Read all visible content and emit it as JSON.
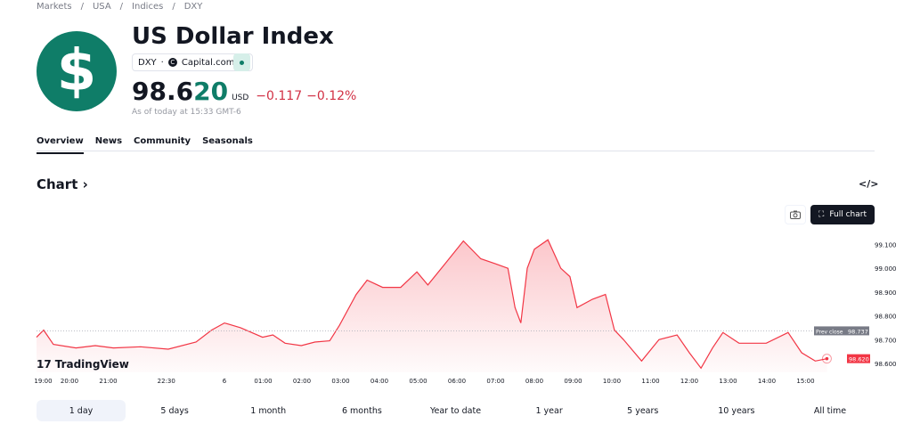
{
  "breadcrumb": [
    "Markets",
    "USA",
    "Indices",
    "DXY"
  ],
  "header": {
    "title": "US Dollar Index",
    "symbol": "DXY",
    "exchange": "Capital.com",
    "logo_glyph": "$",
    "price_main": "98.6",
    "price_tail": "20",
    "currency": "USD",
    "change": "−0.117",
    "change_pct": "−0.12%",
    "as_of": "As of today at 15:33 GMT-6",
    "brand_color": "#0f7d68",
    "down_color": "#d23145"
  },
  "tabs": [
    {
      "label": "Overview",
      "active": true
    },
    {
      "label": "News"
    },
    {
      "label": "Community"
    },
    {
      "label": "Seasonals"
    }
  ],
  "chart_section": {
    "title": "Chart",
    "embed_icon": "</>",
    "full_chart": "Full chart",
    "branding": "TradingView"
  },
  "chart_data": {
    "type": "area",
    "y_ticks": [
      "99.100",
      "99.000",
      "98.900",
      "98.800",
      "98.700",
      "98.600"
    ],
    "ylim": [
      98.56,
      99.16
    ],
    "x_ticks": [
      [
        "19:00",
        "19:00"
      ],
      [
        "20:00",
        "20:00"
      ],
      [
        "21:00",
        "21:00"
      ],
      [
        "22:30",
        "22:30"
      ],
      [
        "6",
        "00:00"
      ],
      [
        "01:00",
        "01:00"
      ],
      [
        "02:00",
        "02:00"
      ],
      [
        "03:00",
        "03:00"
      ],
      [
        "04:00",
        "04:00"
      ],
      [
        "05:00",
        "05:00"
      ],
      [
        "06:00",
        "06:00"
      ],
      [
        "07:00",
        "07:00"
      ],
      [
        "08:00",
        "08:00"
      ],
      [
        "09:00",
        "09:00"
      ],
      [
        "10:00",
        "10:00"
      ],
      [
        "11:00",
        "11:00"
      ],
      [
        "12:00",
        "12:00"
      ],
      [
        "13:00",
        "13:00"
      ],
      [
        "14:00",
        "14:00"
      ],
      [
        "15:00",
        "15:00"
      ]
    ],
    "prev_close": {
      "label": "Prev close",
      "value": 98.737,
      "text": "98.737"
    },
    "last": {
      "value": 98.62,
      "text": "98.620"
    },
    "line_color": "#f23645",
    "points": [
      [
        "19:09",
        98.71
      ],
      [
        "19:20",
        98.74
      ],
      [
        "19:35",
        98.68
      ],
      [
        "20:10",
        98.665
      ],
      [
        "20:40",
        98.675
      ],
      [
        "21:08",
        98.665
      ],
      [
        "21:50",
        98.67
      ],
      [
        "22:33",
        98.66
      ],
      [
        "23:16",
        98.69
      ],
      [
        "23:40",
        98.74
      ],
      [
        "00:00",
        98.77
      ],
      [
        "00:25",
        98.75
      ],
      [
        "00:59",
        98.71
      ],
      [
        "01:15",
        98.72
      ],
      [
        "01:34",
        98.685
      ],
      [
        "01:59",
        98.675
      ],
      [
        "02:20",
        98.69
      ],
      [
        "02:43",
        98.695
      ],
      [
        "02:58",
        98.76
      ],
      [
        "03:24",
        98.89
      ],
      [
        "03:41",
        98.95
      ],
      [
        "04:05",
        98.92
      ],
      [
        "04:33",
        98.92
      ],
      [
        "04:58",
        98.985
      ],
      [
        "05:15",
        98.93
      ],
      [
        "05:42",
        99.02
      ],
      [
        "06:10",
        99.115
      ],
      [
        "06:37",
        99.04
      ],
      [
        "06:59",
        99.02
      ],
      [
        "07:19",
        99.0
      ],
      [
        "07:30",
        98.835
      ],
      [
        "07:39",
        98.77
      ],
      [
        "07:49",
        99.0
      ],
      [
        "08:00",
        99.08
      ],
      [
        "08:21",
        99.12
      ],
      [
        "08:41",
        99.0
      ],
      [
        "08:55",
        98.965
      ],
      [
        "09:06",
        98.835
      ],
      [
        "09:30",
        98.87
      ],
      [
        "09:50",
        98.89
      ],
      [
        "10:04",
        98.74
      ],
      [
        "10:18",
        98.7
      ],
      [
        "10:46",
        98.61
      ],
      [
        "11:13",
        98.7
      ],
      [
        "11:41",
        98.72
      ],
      [
        "12:00",
        98.645
      ],
      [
        "12:18",
        98.58
      ],
      [
        "12:36",
        98.665
      ],
      [
        "12:52",
        98.73
      ],
      [
        "13:17",
        98.685
      ],
      [
        "13:59",
        98.685
      ],
      [
        "14:33",
        98.73
      ],
      [
        "14:54",
        98.645
      ],
      [
        "15:15",
        98.61
      ],
      [
        "15:33",
        98.62
      ]
    ]
  },
  "periods": [
    {
      "label": "1 day",
      "active": true
    },
    {
      "label": "5 days"
    },
    {
      "label": "1 month"
    },
    {
      "label": "6 months"
    },
    {
      "label": "Year to date"
    },
    {
      "label": "1 year"
    },
    {
      "label": "5 years"
    },
    {
      "label": "10 years"
    },
    {
      "label": "All time"
    }
  ]
}
